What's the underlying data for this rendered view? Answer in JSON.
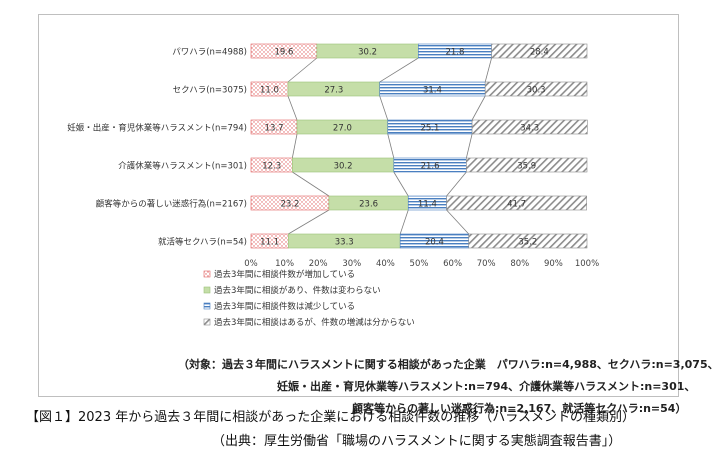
{
  "chart_data": {
    "type": "bar",
    "stacked": true,
    "orientation": "horizontal",
    "categories": [
      "パワハラ(n=4988)",
      "セクハラ(n=3075)",
      "妊娠・出産・育児休業等ハラスメント(n=794)",
      "介護休業等ハラスメント(n=301)",
      "顧客等からの著しい迷惑行為(n=2167)",
      "就活等セクハラ(n=54)"
    ],
    "series": [
      {
        "name": "過去3年間に相談件数が増加している",
        "values": [
          19.6,
          11.0,
          13.7,
          12.3,
          23.2,
          11.1
        ],
        "color": "#e06060",
        "pattern": "dots"
      },
      {
        "name": "過去3年間に相談があり、件数は変わらない",
        "values": [
          30.2,
          27.3,
          27.0,
          30.2,
          23.6,
          33.3
        ],
        "color": "#c5dea8",
        "pattern": "solid"
      },
      {
        "name": "過去3年間に相談件数は減少している",
        "values": [
          21.8,
          31.4,
          25.1,
          21.6,
          11.4,
          20.4
        ],
        "color": "#4a7fc0",
        "pattern": "hstripes"
      },
      {
        "name": "過去3年間に相談はあるが、件数の増減は分からない",
        "values": [
          28.4,
          30.3,
          34.3,
          35.9,
          41.7,
          35.2
        ],
        "color": "#a0a0a0",
        "pattern": "diagonal"
      }
    ],
    "data_labels": [
      [
        "19.6",
        "30.2",
        "21.8",
        "28.4"
      ],
      [
        "11.0",
        "27.3",
        "31.4",
        "30.3"
      ],
      [
        "13.7",
        "27.0",
        "25.1",
        "34.3"
      ],
      [
        "12.3",
        "30.2",
        "21.6",
        "35.9"
      ],
      [
        "23.2",
        "23.6",
        "11.4",
        "41.7"
      ],
      [
        "11.1",
        "33.3",
        "20.4",
        "35.2"
      ]
    ],
    "x_ticks": [
      "0%",
      "10%",
      "20%",
      "30%",
      "40%",
      "50%",
      "60%",
      "70%",
      "80%",
      "90%",
      "100%"
    ],
    "xlim": [
      0,
      100
    ],
    "series_lines": true,
    "grid": false,
    "legend_position": "bottom-left"
  },
  "notes": {
    "line1": "（対象：過去３年間にハラスメントに関する相談があった企業　パワハラ:n=4,988、セクハラ:n=3,075、",
    "line2": "妊娠・出産・育児休業等ハラスメント:n=794、介護休業等ハラスメント:n=301、",
    "line3": "顧客等からの著しい迷惑行為:n=2,167、就活等セクハラ:n=54）"
  },
  "caption": "【図１】2023 年から過去３年間に相談があった企業における相談件数の推移（ハラスメントの種類別）",
  "source": "（出典：厚生労働省「職場のハラスメントに関する実態調査報告書」）"
}
